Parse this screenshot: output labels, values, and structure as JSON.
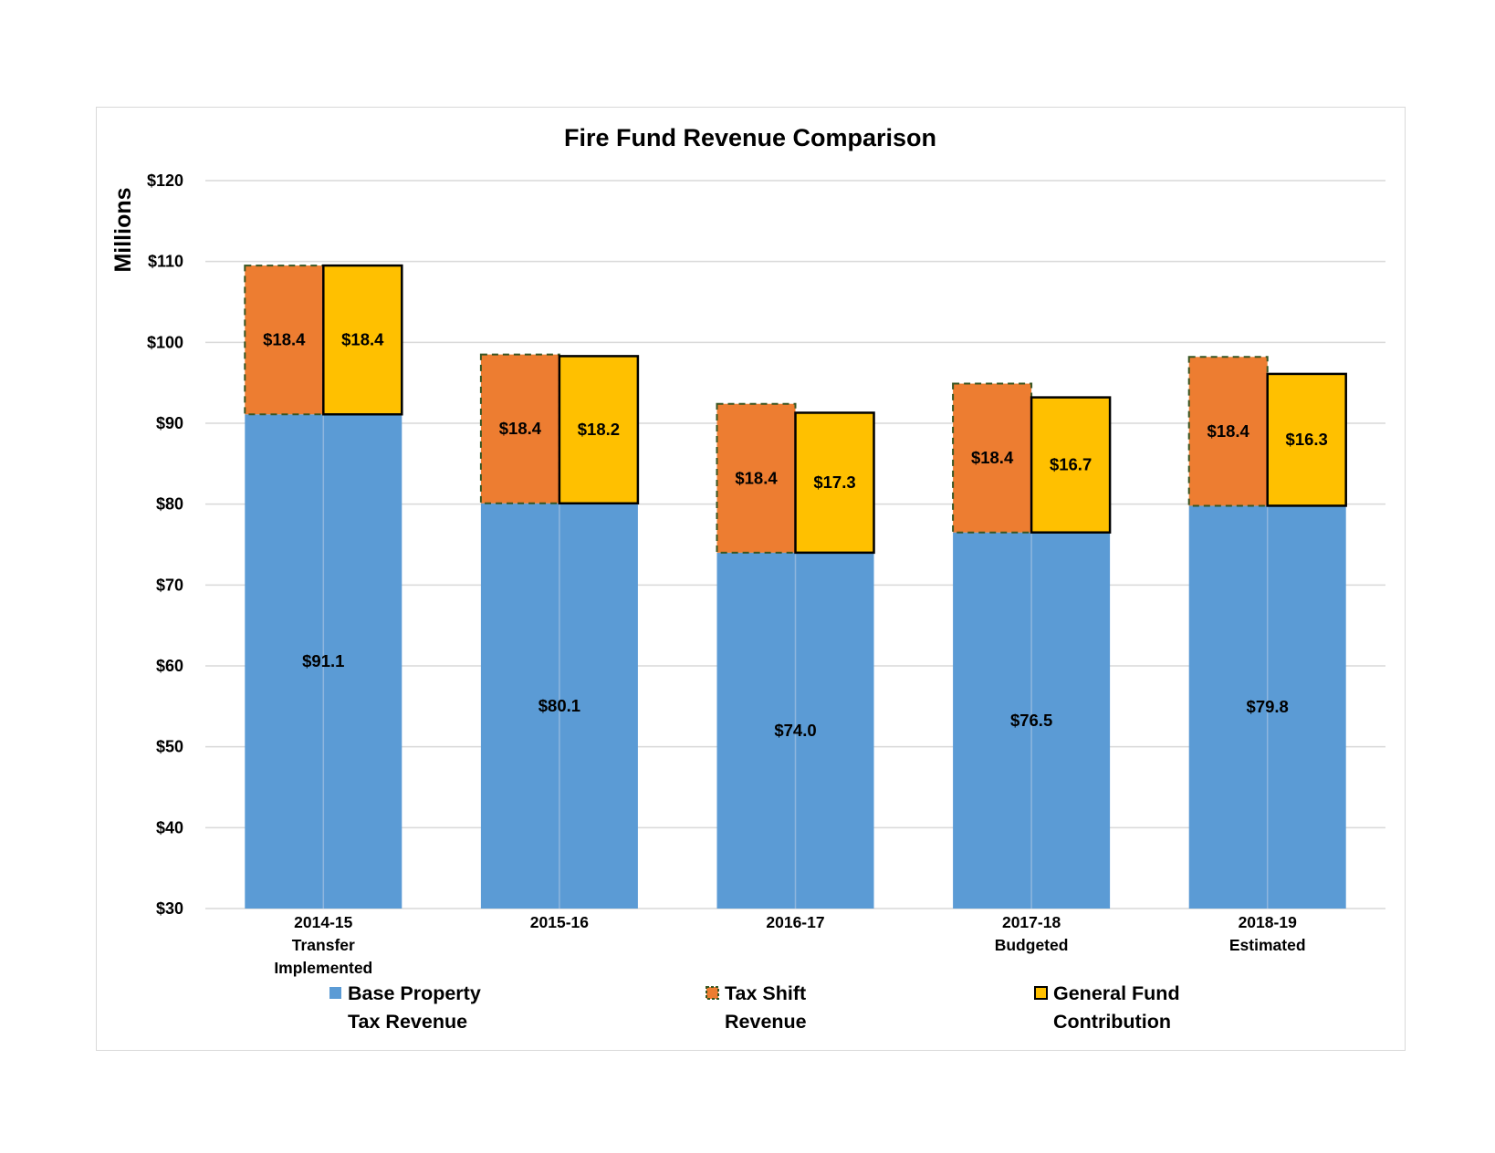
{
  "chart_data": {
    "type": "bar",
    "title": "Fire Fund Revenue Comparison",
    "ylabel": "Millions",
    "xlabel": "",
    "ylim": [
      30,
      120
    ],
    "y_tick_step": 10,
    "y_tick_labels": [
      "$30",
      "$40",
      "$50",
      "$60",
      "$70",
      "$80",
      "$90",
      "$100",
      "$110",
      "$120"
    ],
    "grid": true,
    "legend_position": "bottom",
    "categories": [
      [
        "2014-15",
        "Transfer",
        "Implemented"
      ],
      [
        "2015-16"
      ],
      [
        "2016-17"
      ],
      [
        "2017-18",
        "Budgeted"
      ],
      [
        "2018-19",
        "Estimated"
      ]
    ],
    "series": [
      {
        "name": "Base Property Tax Revenue",
        "legend_lines": [
          "Base Property",
          "Tax Revenue"
        ],
        "values": [
          91.1,
          80.1,
          74.0,
          76.5,
          79.8
        ],
        "labels": [
          "$91.1",
          "$80.1",
          "$74.0",
          "$76.5",
          "$79.8"
        ],
        "color": "#5b9bd5",
        "position": "spans both bars"
      },
      {
        "name": "Tax Shift Revenue",
        "legend_lines": [
          "Tax Shift",
          "Revenue"
        ],
        "values": [
          18.4,
          18.4,
          18.4,
          18.4,
          18.4
        ],
        "labels": [
          "$18.4",
          "$18.4",
          "$18.4",
          "$18.4",
          "$18.4"
        ],
        "color": "#ed7d31",
        "border_color": "#375623",
        "border_style": "dashed",
        "position": "left bar, stacked on base"
      },
      {
        "name": "General Fund Contribution",
        "legend_lines": [
          "General Fund",
          "Contribution"
        ],
        "values": [
          18.4,
          18.2,
          17.3,
          16.7,
          16.3
        ],
        "labels": [
          "$18.4",
          "$18.2",
          "$17.3",
          "$16.7",
          "$16.3"
        ],
        "color": "#ffc000",
        "border_color": "#000000",
        "border_style": "solid",
        "position": "right bar, stacked on base"
      }
    ]
  },
  "colors": {
    "gridline": "#d9d9d9",
    "frame_border": "#d9d9d9",
    "divider": "#8fb6de"
  }
}
